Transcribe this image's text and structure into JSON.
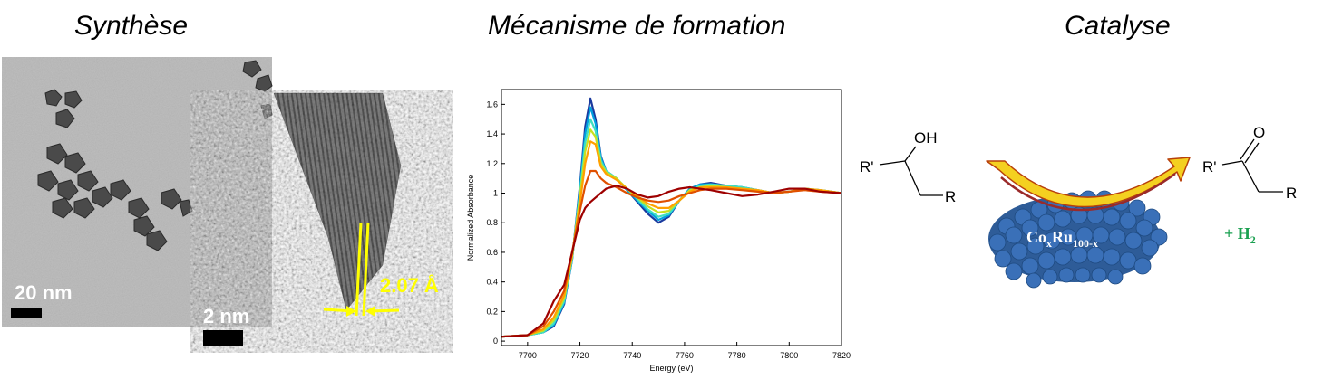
{
  "titles": {
    "synthesis": "Synthèse",
    "mechanism": "Mécanisme de formation",
    "catalysis": "Catalyse"
  },
  "tem": {
    "scale_large": "20 nm",
    "scale_small": "2 nm",
    "lattice_spacing": "2.07 Å",
    "highlight_color": "#ffff00"
  },
  "chart_data": {
    "type": "line",
    "xlabel": "Energy (eV)",
    "ylabel": "Normalized Absorbance",
    "xlim": [
      7690,
      7820
    ],
    "ylim": [
      -0.03,
      1.7
    ],
    "xticks": [
      7700,
      7720,
      7740,
      7760,
      7780,
      7800,
      7820
    ],
    "yticks": [
      0,
      0.2,
      0.4,
      0.6,
      0.8,
      1,
      1.2,
      1.4,
      1.6
    ],
    "xtick_labels": [
      "7700",
      "7720",
      "7740",
      "7760",
      "7780",
      "7800",
      "7820"
    ],
    "ytick_labels": [
      "0",
      "0.2",
      "0.4",
      "0.6",
      "0.8",
      "1",
      "1.2",
      "1.4",
      "1.6"
    ],
    "grid": false,
    "series": [
      {
        "color": "#1a3a9e",
        "x": [
          7690,
          7700,
          7706,
          7710,
          7714,
          7717,
          7720,
          7722,
          7724,
          7726,
          7728,
          7730,
          7734,
          7738,
          7742,
          7746,
          7750,
          7754,
          7758,
          7762,
          7766,
          7770,
          7776,
          7782,
          7788,
          7794,
          7800,
          7806,
          7812,
          7820
        ],
        "y": [
          0.03,
          0.04,
          0.06,
          0.1,
          0.25,
          0.55,
          1.05,
          1.45,
          1.64,
          1.5,
          1.25,
          1.15,
          1.1,
          1.02,
          0.94,
          0.86,
          0.8,
          0.84,
          0.95,
          1.03,
          1.06,
          1.07,
          1.05,
          1.04,
          1.02,
          1.0,
          1.01,
          1.03,
          1.02,
          1.0
        ]
      },
      {
        "color": "#00a0e0",
        "x": [
          7690,
          7700,
          7706,
          7710,
          7714,
          7717,
          7720,
          7722,
          7724,
          7726,
          7728,
          7730,
          7734,
          7738,
          7742,
          7746,
          7750,
          7754,
          7758,
          7762,
          7766,
          7770,
          7776,
          7782,
          7788,
          7794,
          7800,
          7806,
          7812,
          7820
        ],
        "y": [
          0.03,
          0.04,
          0.06,
          0.11,
          0.26,
          0.55,
          1.03,
          1.4,
          1.58,
          1.47,
          1.24,
          1.15,
          1.1,
          1.02,
          0.95,
          0.88,
          0.82,
          0.85,
          0.95,
          1.03,
          1.06,
          1.06,
          1.05,
          1.04,
          1.02,
          1.0,
          1.01,
          1.03,
          1.02,
          1.0
        ]
      },
      {
        "color": "#40e0c0",
        "x": [
          7690,
          7700,
          7706,
          7710,
          7714,
          7717,
          7720,
          7722,
          7724,
          7726,
          7728,
          7730,
          7734,
          7738,
          7742,
          7746,
          7750,
          7754,
          7758,
          7762,
          7766,
          7770,
          7776,
          7782,
          7788,
          7794,
          7800,
          7806,
          7812,
          7820
        ],
        "y": [
          0.03,
          0.04,
          0.06,
          0.12,
          0.27,
          0.56,
          1.0,
          1.34,
          1.5,
          1.42,
          1.22,
          1.15,
          1.1,
          1.03,
          0.96,
          0.89,
          0.84,
          0.86,
          0.95,
          1.02,
          1.05,
          1.06,
          1.05,
          1.04,
          1.02,
          1.0,
          1.01,
          1.03,
          1.02,
          1.0
        ]
      },
      {
        "color": "#c8e020",
        "x": [
          7690,
          7700,
          7706,
          7710,
          7714,
          7717,
          7720,
          7722,
          7724,
          7726,
          7728,
          7730,
          7734,
          7738,
          7742,
          7746,
          7750,
          7754,
          7758,
          7762,
          7766,
          7770,
          7776,
          7782,
          7788,
          7794,
          7800,
          7806,
          7812,
          7820
        ],
        "y": [
          0.03,
          0.04,
          0.07,
          0.14,
          0.29,
          0.57,
          0.97,
          1.28,
          1.43,
          1.38,
          1.2,
          1.14,
          1.1,
          1.03,
          0.97,
          0.91,
          0.87,
          0.88,
          0.95,
          1.02,
          1.04,
          1.05,
          1.04,
          1.03,
          1.02,
          1.0,
          1.01,
          1.03,
          1.02,
          1.0
        ]
      },
      {
        "color": "#ffa000",
        "x": [
          7690,
          7700,
          7706,
          7710,
          7714,
          7717,
          7720,
          7722,
          7724,
          7726,
          7728,
          7730,
          7734,
          7738,
          7742,
          7746,
          7750,
          7754,
          7758,
          7762,
          7766,
          7770,
          7776,
          7782,
          7788,
          7794,
          7800,
          7806,
          7812,
          7820
        ],
        "y": [
          0.03,
          0.04,
          0.08,
          0.16,
          0.31,
          0.58,
          0.93,
          1.2,
          1.35,
          1.33,
          1.18,
          1.13,
          1.09,
          1.03,
          0.98,
          0.93,
          0.9,
          0.9,
          0.95,
          1.01,
          1.04,
          1.04,
          1.04,
          1.03,
          1.02,
          1.0,
          1.01,
          1.03,
          1.02,
          1.0
        ]
      },
      {
        "color": "#e05000",
        "x": [
          7690,
          7700,
          7706,
          7710,
          7714,
          7717,
          7720,
          7722,
          7724,
          7726,
          7728,
          7730,
          7734,
          7738,
          7742,
          7746,
          7750,
          7754,
          7758,
          7762,
          7766,
          7770,
          7776,
          7782,
          7788,
          7794,
          7800,
          7806,
          7812,
          7820
        ],
        "y": [
          0.03,
          0.04,
          0.1,
          0.2,
          0.34,
          0.6,
          0.88,
          1.05,
          1.15,
          1.15,
          1.1,
          1.07,
          1.04,
          1.0,
          0.97,
          0.95,
          0.94,
          0.95,
          0.98,
          1.0,
          1.02,
          1.03,
          1.03,
          1.02,
          1.01,
          1.0,
          1.01,
          1.02,
          1.01,
          1.0
        ]
      },
      {
        "color": "#9e0000",
        "x": [
          7690,
          7700,
          7706,
          7710,
          7714,
          7717,
          7720,
          7722,
          7724,
          7726,
          7728,
          7730,
          7734,
          7738,
          7742,
          7746,
          7750,
          7754,
          7758,
          7762,
          7766,
          7770,
          7776,
          7782,
          7788,
          7794,
          7800,
          7806,
          7812,
          7820
        ],
        "y": [
          0.03,
          0.04,
          0.12,
          0.27,
          0.38,
          0.6,
          0.82,
          0.9,
          0.94,
          0.97,
          1.0,
          1.03,
          1.05,
          1.03,
          0.99,
          0.97,
          0.98,
          1.01,
          1.03,
          1.04,
          1.03,
          1.02,
          1.0,
          0.98,
          0.99,
          1.01,
          1.03,
          1.03,
          1.01,
          1.0
        ]
      }
    ]
  },
  "chemistry": {
    "reactant_oh": "OH",
    "reactant_r1": "R'",
    "reactant_r2": "R",
    "product_o": "O",
    "product_r1": "R'",
    "product_r2": "R",
    "catalyst_base": "Co",
    "catalyst_sub1": "x",
    "catalyst_mid": "Ru",
    "catalyst_sub2": "100-x",
    "byproduct_prefix": "+ H",
    "byproduct_sub": "2",
    "byproduct_color": "#1aa050",
    "particle_color": "#3a70b8",
    "arrow_color": "#e8a020"
  }
}
